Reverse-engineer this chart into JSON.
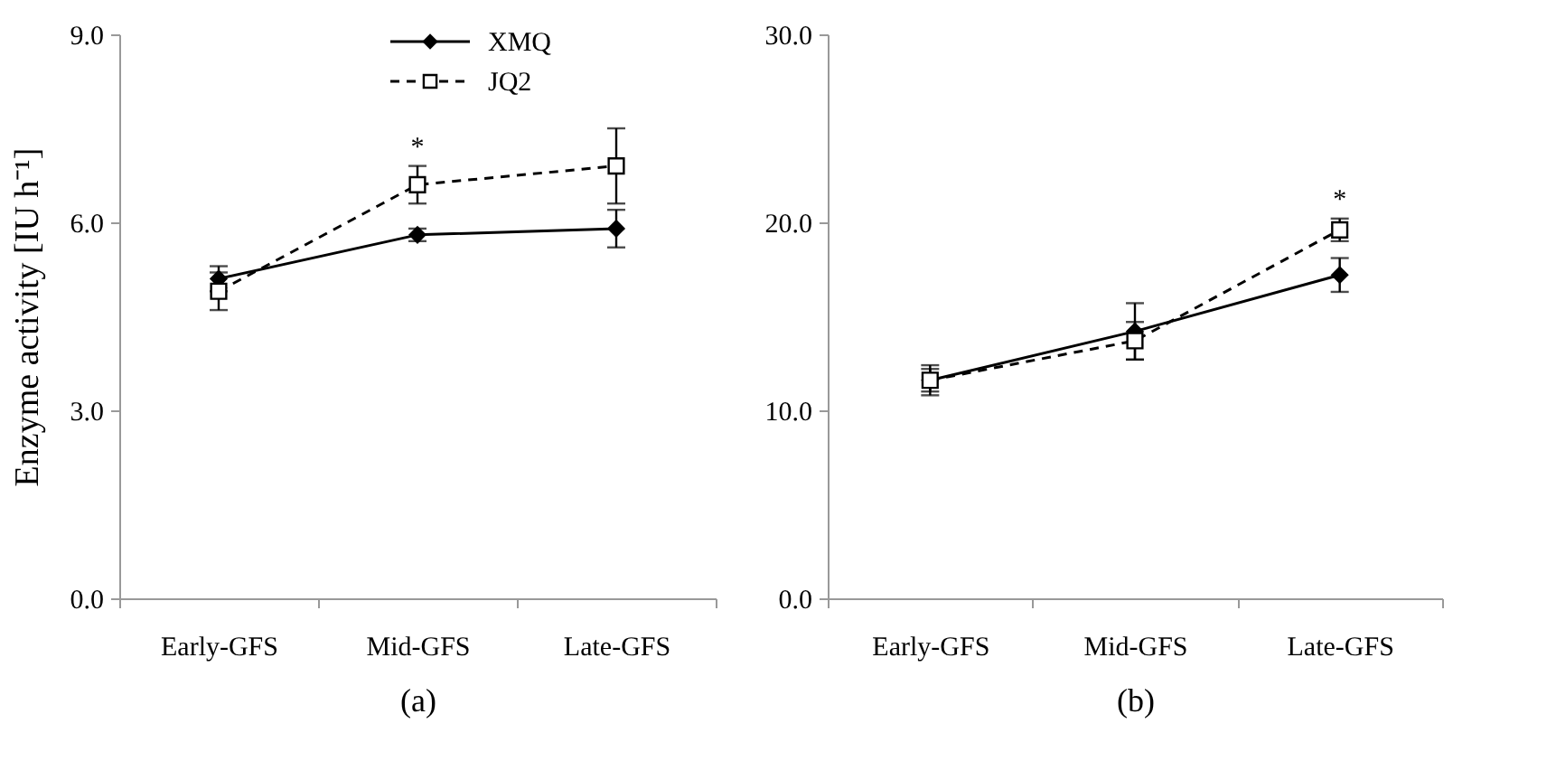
{
  "chart_data": [
    {
      "type": "line",
      "categories": [
        "Early-GFS",
        "Mid-GFS",
        "Late-GFS"
      ],
      "xlabel": "(a)",
      "ylabel": "Enzyme activity [IU h⁻¹]",
      "ylim": [
        0,
        9
      ],
      "yticks": [
        {
          "value": 0,
          "label": "0.0"
        },
        {
          "value": 3,
          "label": "3.0"
        },
        {
          "value": 6,
          "label": "6.0"
        },
        {
          "value": 9,
          "label": "9.0"
        }
      ],
      "grid": false,
      "legend": "top",
      "series": [
        {
          "name": "XMQ",
          "color": "#000000",
          "marker": "diamond",
          "line_style": "solid",
          "values": [
            5.1,
            5.8,
            5.9
          ],
          "errors": [
            0.2,
            0.1,
            0.3
          ]
        },
        {
          "name": "JQ2",
          "color": "#000000",
          "marker": "square",
          "line_style": "dashed",
          "values": [
            4.9,
            6.6,
            6.9
          ],
          "errors": [
            0.3,
            0.3,
            0.6
          ]
        }
      ],
      "annotations": [
        {
          "text": "*",
          "x": "Mid-GFS",
          "y": 6.9
        }
      ]
    },
    {
      "type": "line",
      "categories": [
        "Early-GFS",
        "Mid-GFS",
        "Late-GFS"
      ],
      "xlabel": "(b)",
      "ylim": [
        0,
        30
      ],
      "yticks": [
        {
          "value": 0,
          "label": "0.0"
        },
        {
          "value": 10,
          "label": "10.0"
        },
        {
          "value": 20,
          "label": "20.0"
        },
        {
          "value": 30,
          "label": "30.0"
        }
      ],
      "grid": false,
      "series": [
        {
          "color": "#000000",
          "marker": "diamond",
          "line_style": "solid",
          "values": [
            11.6,
            14.2,
            17.2
          ],
          "errors": [
            0.8,
            1.5,
            0.9
          ]
        },
        {
          "color": "#000000",
          "marker": "square",
          "line_style": "dashed",
          "values": [
            11.6,
            13.7,
            19.6
          ],
          "errors": [
            0.6,
            1.0,
            0.6
          ]
        }
      ],
      "annotations": [
        {
          "text": "*",
          "x": "Late-GFS",
          "y": 20.2
        }
      ]
    }
  ]
}
